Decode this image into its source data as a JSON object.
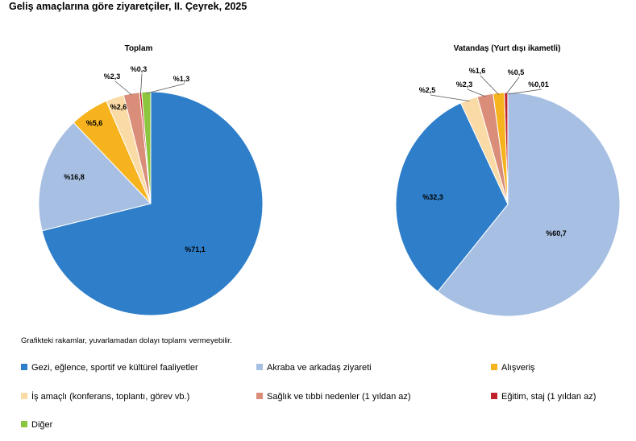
{
  "title": "Geliş amaçlarına göre ziyaretçiler, II. Çeyrek, 2025",
  "note": "Grafikteki rakamlar, yuvarlamadan dolayı toplamı vermeyebilir.",
  "legend": [
    {
      "label": "Gezi, eğlence, sportif ve kültürel faaliyetler",
      "color": "#2E7EC9"
    },
    {
      "label": "Akraba ve arkadaş ziyareti",
      "color": "#A6BFE2"
    },
    {
      "label": "Alışveriş",
      "color": "#F6B31D"
    },
    {
      "label": "İş amaçlı (konferans, toplantı, görev vb.)",
      "color": "#FBDBA5"
    },
    {
      "label": "Sağlık ve tıbbi nedenler (1 yıldan az)",
      "color": "#DA8E7A"
    },
    {
      "label": "Eğitim, staj (1 yıldan az)",
      "color": "#C0232B"
    },
    {
      "label": "Diğer",
      "color": "#8CC63F"
    }
  ],
  "chart_data": [
    {
      "type": "pie",
      "title": "Toplam",
      "categories": [
        "Gezi, eğlence, sportif ve kültürel faaliyetler",
        "Akraba ve arkadaş ziyareti",
        "Alışveriş",
        "İş amaçlı (konferans, toplantı, görev vb.)",
        "Sağlık ve tıbbi nedenler (1 yıldan az)",
        "Eğitim, staj (1 yıldan az)",
        "Diğer"
      ],
      "values": [
        71.1,
        16.8,
        5.6,
        2.6,
        2.3,
        0.3,
        1.3
      ],
      "labels": [
        "%71,1",
        "%16,8",
        "%5,6",
        "%2,6",
        "%2,3",
        "%0,3",
        "%1,3"
      ]
    },
    {
      "type": "pie",
      "title": "Vatandaş (Yurt dışı ikametli)",
      "categories": [
        "Gezi, eğlence, sportif ve kültürel faaliyetler",
        "Akraba ve arkadaş ziyareti",
        "Alışveriş",
        "İş amaçlı (konferans, toplantı, görev vb.)",
        "Sağlık ve tıbbi nedenler (1 yıldan az)",
        "Eğitim, staj (1 yıldan az)",
        "Diğer"
      ],
      "values": [
        32.3,
        60.7,
        1.6,
        2.5,
        2.3,
        0.5,
        0.01
      ],
      "labels": [
        "%32,3",
        "%60,7",
        "%1,6",
        "%2,5",
        "%2,3",
        "%0,5",
        "%0,01"
      ]
    }
  ]
}
